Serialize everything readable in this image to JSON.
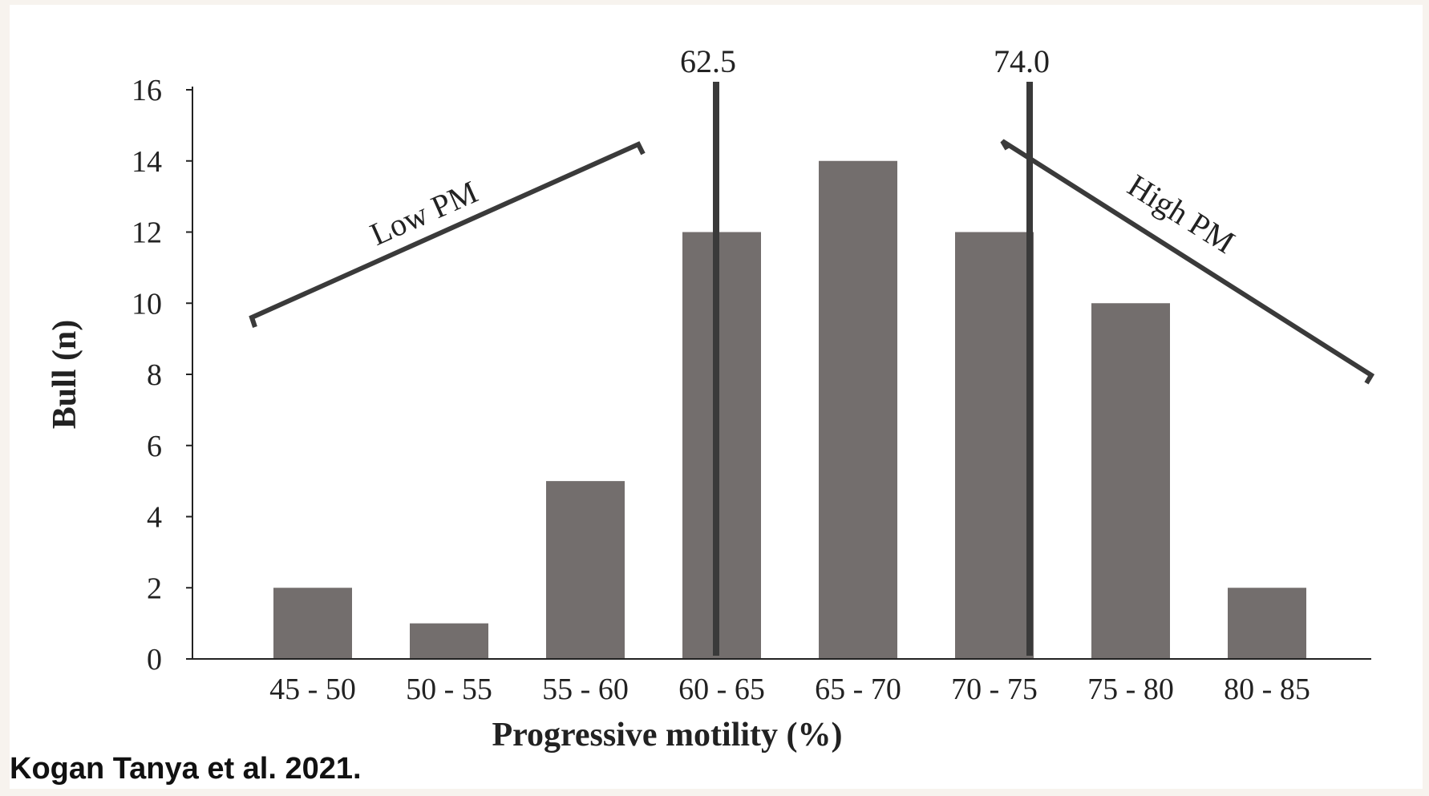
{
  "citation": "Kogan Tanya et al. 2021.",
  "chart_data": {
    "type": "bar",
    "categories": [
      "45 - 50",
      "50 - 55",
      "55 - 60",
      "60 - 65",
      "65 - 70",
      "70 - 75",
      "75 - 80",
      "80 - 85"
    ],
    "values": [
      2,
      1,
      5,
      12,
      14,
      12,
      10,
      2
    ],
    "xlabel": "Progressive motility (%)",
    "ylabel": "Bull (n)",
    "ylim": [
      0,
      16
    ],
    "yticks": [
      0,
      2,
      4,
      6,
      8,
      10,
      12,
      14,
      16
    ],
    "grid": false,
    "bar_color": "#736e6d",
    "annotations": {
      "thresholds": [
        {
          "value": 62.5,
          "label": "62.5"
        },
        {
          "value": 74.0,
          "label": "74.0"
        }
      ],
      "low_label": "Low PM",
      "high_label": "High PM",
      "line_color": "#3a3a3a"
    }
  }
}
